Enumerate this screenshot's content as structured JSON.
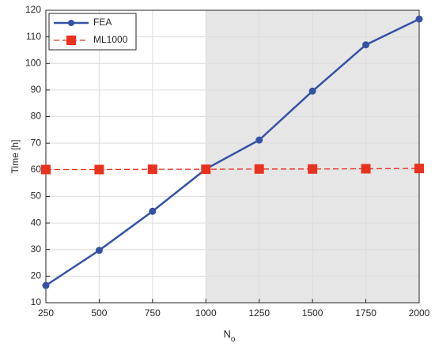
{
  "chart_data": {
    "type": "line",
    "xlabel": "N",
    "xlabel_subscript": "o",
    "ylabel": "Time [h]",
    "x": [
      250,
      500,
      750,
      1000,
      1250,
      1500,
      1750,
      2000
    ],
    "series": [
      {
        "name": "FEA",
        "color": "#3452a4",
        "marker": "circle",
        "dash": false,
        "values": [
          16.5,
          29.7,
          44.4,
          60.3,
          71.2,
          89.6,
          107,
          116.7
        ]
      },
      {
        "name": "ML1000",
        "color": "#e8311f",
        "marker": "square",
        "dash": true,
        "values": [
          60.1,
          60.1,
          60.2,
          60.2,
          60.3,
          60.3,
          60.4,
          60.5
        ]
      }
    ],
    "xlim": [
      250,
      2000
    ],
    "xticks": [
      250,
      500,
      750,
      1000,
      1250,
      1500,
      1750,
      2000
    ],
    "ylim": [
      10,
      120
    ],
    "yticks": [
      10,
      20,
      30,
      40,
      50,
      60,
      70,
      80,
      90,
      100,
      110,
      120
    ],
    "shaded_x": [
      1000,
      2000
    ],
    "shade_color": "#e6e6e6",
    "grid": true,
    "legend": "upper left"
  }
}
